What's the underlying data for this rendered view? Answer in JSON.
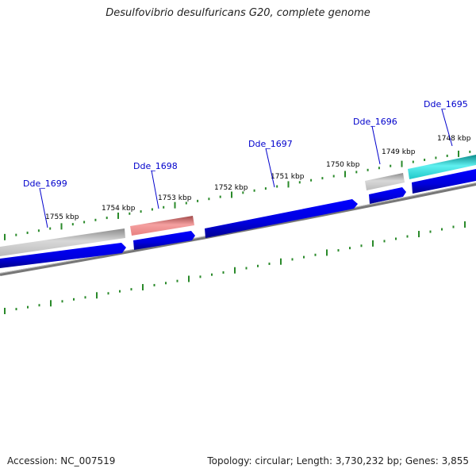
{
  "title": "Desulfovibrio desulfuricans G20, complete genome",
  "footer": {
    "accession": "Accession: NC_007519",
    "summary": "Topology: circular; Length: 3,730,232 bp; Genes: 3,855"
  },
  "colors": {
    "forward_gene": "#0000dd",
    "gray_gene": "#b8b8b8",
    "red_gene": "#e88080",
    "cyan_gene": "#20d0d0",
    "backbone": "#777777",
    "tick": "#2a8a2a",
    "label": "#0000cc"
  },
  "scale_labels": [
    "1755 kbp",
    "1754 kbp",
    "1753 kbp",
    "1752 kbp",
    "1751 kbp",
    "1750 kbp",
    "1749 kbp",
    "1748 kbp"
  ],
  "gene_labels": [
    "Dde_1699",
    "Dde_1698",
    "Dde_1697",
    "Dde_1696",
    "Dde_1695"
  ]
}
